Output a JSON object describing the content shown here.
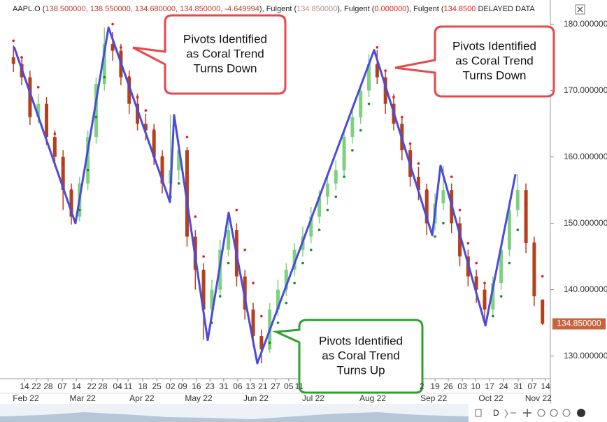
{
  "chart_data": {
    "type": "candlestick",
    "header": [
      {
        "text": "AAPL.O (",
        "color": "#222222"
      },
      {
        "text": "138.500000, 138.550000, 134.680000, 134.850000, -4.649994",
        "color": "#c0392b"
      },
      {
        "text": "), Fulgent  (",
        "color": "#222222"
      },
      {
        "text": "134.850000",
        "color": "#c08a8a"
      },
      {
        "text": "), Fulgent  (",
        "color": "#222222"
      },
      {
        "text": "0.000000",
        "color": "#e02020"
      },
      {
        "text": "), Fulgent  (",
        "color": "#222222"
      },
      {
        "text": "134.8500",
        "color": "#e02020"
      },
      {
        "text": "  DELAYED DATA",
        "color": "#222222"
      }
    ],
    "xlim": [
      -6.35,
      190.35
    ],
    "ylim": [
      126.8,
      182.8
    ],
    "grid": false,
    "yticks": [
      {
        "value": 130,
        "label": "130.000000"
      },
      {
        "value": 140,
        "label": "140.000000"
      },
      {
        "value": 150,
        "label": "150.000000"
      },
      {
        "value": 160,
        "label": "160.000000"
      },
      {
        "value": 170,
        "label": "170.000000"
      },
      {
        "value": 180,
        "label": "180.000000"
      }
    ],
    "xticks": [
      {
        "value": 0,
        "label": "14"
      },
      {
        "value": 4.3,
        "label": "22"
      },
      {
        "value": 8.6,
        "label": "28"
      },
      {
        "value": 13.7,
        "label": "07"
      },
      {
        "value": 18.8,
        "label": "14"
      },
      {
        "value": 24.4,
        "label": "22"
      },
      {
        "value": 28.4,
        "label": "28"
      },
      {
        "value": 33.8,
        "label": "04"
      },
      {
        "value": 37.6,
        "label": "11"
      },
      {
        "value": 42.9,
        "label": "18"
      },
      {
        "value": 48,
        "label": "25"
      },
      {
        "value": 53,
        "label": "02"
      },
      {
        "value": 57.4,
        "label": "09"
      },
      {
        "value": 62.4,
        "label": "16"
      },
      {
        "value": 67.3,
        "label": "23"
      },
      {
        "value": 72.3,
        "label": "31"
      },
      {
        "value": 77.4,
        "label": "06"
      },
      {
        "value": 82,
        "label": "13"
      },
      {
        "value": 86.5,
        "label": "21"
      },
      {
        "value": 91.1,
        "label": "27"
      },
      {
        "value": 95.9,
        "label": "05"
      },
      {
        "value": 99.7,
        "label": "11"
      },
      {
        "value": 144.2,
        "label": "2"
      },
      {
        "value": 149,
        "label": "19"
      },
      {
        "value": 153.8,
        "label": "26"
      },
      {
        "value": 158.9,
        "label": "03"
      },
      {
        "value": 163.7,
        "label": "10"
      },
      {
        "value": 168.8,
        "label": "17"
      },
      {
        "value": 173.9,
        "label": "24"
      },
      {
        "value": 179.2,
        "label": "31"
      },
      {
        "value": 184.3,
        "label": "07"
      },
      {
        "value": 189.1,
        "label": "14"
      }
    ],
    "xmonths": [
      {
        "value": 0.5,
        "label": "Feb 22"
      },
      {
        "value": 21.1,
        "label": "Mar 22"
      },
      {
        "value": 42.6,
        "label": "Apr 22"
      },
      {
        "value": 63.2,
        "label": "May 22"
      },
      {
        "value": 84,
        "label": "Jun 22"
      },
      {
        "value": 104.8,
        "label": "Jul 22"
      },
      {
        "value": 126.4,
        "label": "Aug 22"
      },
      {
        "value": 148.5,
        "label": "Sep 22"
      },
      {
        "value": 169.3,
        "label": "Oct 22"
      },
      {
        "value": 186.5,
        "label": "Nov 22"
      }
    ],
    "candles": {
      "up_color": "#7dd37d",
      "down_color": "#b5401c",
      "x": [
        -4,
        -1,
        2,
        5,
        8,
        11,
        14,
        17,
        20,
        23,
        26,
        29,
        32,
        35,
        38,
        41,
        44,
        47,
        50,
        53,
        56,
        59,
        62,
        65,
        68,
        71,
        74,
        77,
        80,
        83,
        86,
        89,
        92,
        95,
        98,
        101,
        104,
        107,
        110,
        113,
        116,
        119,
        122,
        125,
        128,
        131,
        134,
        137,
        140,
        143,
        146,
        149,
        152,
        155,
        158,
        161,
        164,
        167,
        170,
        173,
        176,
        179,
        182,
        185,
        188
      ],
      "open": [
        175,
        174,
        172,
        166,
        168,
        163,
        160,
        155,
        151,
        156,
        163,
        171,
        177,
        176,
        172,
        168,
        165,
        164,
        160,
        156,
        158,
        161,
        148,
        143,
        137,
        140,
        146,
        149,
        142,
        137,
        133,
        131,
        137,
        140,
        143,
        146,
        148,
        151,
        154,
        156,
        158,
        163,
        166,
        170,
        174,
        172,
        168,
        165,
        161,
        157,
        155,
        150,
        153,
        155,
        150,
        145,
        142,
        140,
        137,
        141,
        146,
        152,
        155,
        147,
        138.5
      ],
      "high": [
        176.8,
        175.2,
        173,
        169.5,
        169,
        164,
        161,
        156,
        157,
        164,
        172,
        179.5,
        178.8,
        177,
        173,
        169.5,
        166.5,
        165,
        161,
        166.3,
        162.5,
        161.5,
        149,
        144,
        141.5,
        147.5,
        151.6,
        150,
        143,
        138,
        134,
        138,
        141.5,
        144,
        147,
        149.5,
        152.5,
        155,
        157,
        159.5,
        164,
        167.5,
        171,
        175.5,
        176.1,
        173,
        169.5,
        166,
        162,
        158.5,
        156,
        154.5,
        158.7,
        156,
        151,
        146,
        143,
        141,
        142,
        147,
        153,
        157.4,
        156,
        148,
        138.55
      ],
      "low": [
        172.8,
        170.8,
        164.8,
        165,
        161.8,
        158.5,
        152,
        149.8,
        150.3,
        155,
        162,
        170,
        174.5,
        170.8,
        166.5,
        164,
        162.5,
        158.8,
        154.5,
        153.2,
        156.5,
        146.5,
        140,
        132.5,
        135.5,
        139,
        145,
        140.5,
        135.5,
        131.5,
        128.9,
        130.5,
        136,
        139,
        142,
        145,
        147,
        150,
        152.8,
        155,
        157,
        162,
        165,
        169,
        171,
        166.5,
        164,
        159.5,
        155.5,
        153.5,
        148.2,
        149,
        152,
        148.5,
        143.5,
        140.5,
        138,
        134.6,
        136,
        140,
        145,
        151,
        145.5,
        137.5,
        134.68
      ],
      "close": [
        174,
        172,
        166,
        168,
        163,
        160,
        155,
        151,
        156,
        163,
        171,
        177,
        176,
        172,
        168,
        165,
        164,
        160,
        156,
        158,
        161,
        148,
        143,
        137,
        140,
        146,
        149,
        142,
        137,
        133,
        131,
        137,
        140,
        143,
        146,
        148,
        151,
        154,
        156,
        158,
        163,
        166,
        170,
        174,
        172,
        168,
        165,
        161,
        157,
        155,
        150,
        153,
        155,
        150,
        145,
        142,
        140,
        137,
        141,
        146,
        152,
        155,
        147,
        139,
        134.85
      ]
    },
    "coral": {
      "above_color": "#e02020",
      "below_color": "#1f8a2a",
      "values": [
        177.5,
        175,
        170,
        170.5,
        167,
        163.5,
        159,
        155,
        152,
        158,
        166,
        172,
        180,
        176.5,
        172,
        169,
        167,
        164,
        160,
        154,
        156,
        163,
        151,
        145,
        135,
        139,
        144,
        152,
        146,
        141,
        136,
        132,
        135,
        138,
        141,
        144,
        146,
        149,
        152,
        154,
        157,
        161,
        164,
        168,
        176.5,
        173,
        169,
        166,
        162,
        159,
        155,
        148,
        150,
        157,
        152,
        147,
        144,
        141,
        136,
        139,
        144,
        149,
        153,
        147,
        142
      ]
    },
    "pivots": {
      "color": "#4a4ae0",
      "x": [
        -3.8,
        18.5,
        30.5,
        52.8,
        54.3,
        66.5,
        74.1,
        84.5,
        126.9,
        148,
        151,
        167.3,
        178.2
      ],
      "values": [
        176.6,
        150,
        179.5,
        153.2,
        166.3,
        132.4,
        151.6,
        128.9,
        176.1,
        148.2,
        158.7,
        134.6,
        157.4
      ]
    },
    "last_price": {
      "value": 134.85,
      "label": "134.850000",
      "color": "#c8643c"
    },
    "annotations": [
      {
        "lines": [
          "Pivots Identified",
          "as Coral Trend",
          "Turns Down"
        ],
        "color": "#e8474c"
      },
      {
        "lines": [
          "Pivots Identified",
          "as Coral Trend",
          "Turns Down"
        ],
        "color": "#e8474c"
      },
      {
        "lines": [
          "Pivots Identified",
          "as Coral Trend",
          "Turns Up"
        ],
        "color": "#2ea12e"
      }
    ]
  },
  "toolbar": {
    "period": "D"
  }
}
